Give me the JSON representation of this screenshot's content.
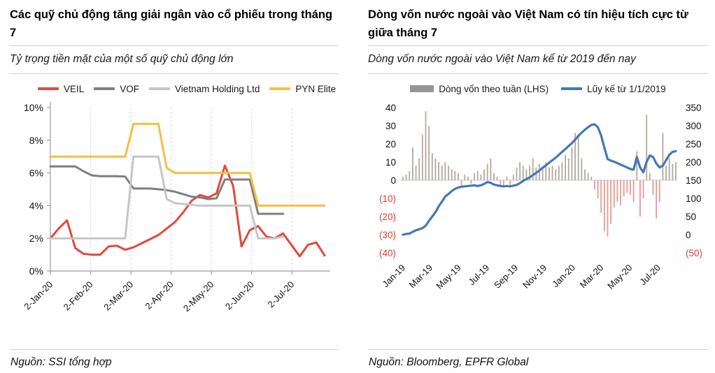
{
  "panels": [
    {
      "title": "Các quỹ chủ động tăng giải ngân vào cổ phiếu trong tháng 7",
      "subtitle": "Tỷ trọng tiền mặt của một số quỹ chủ động lớn",
      "source": "Nguồn: SSI tổng hợp"
    },
    {
      "title": "Dòng vốn nước ngoài vào Việt Nam có tín hiệu tích cực từ giữa tháng 7",
      "subtitle": "Dòng vốn nước ngoài vào Việt Nam kể từ 2019 đến nay",
      "source": "Nguồn: Bloomberg, EPFR Global"
    }
  ],
  "colors": {
    "veil_red": "#e2493b",
    "vof_gray": "#7f7f7f",
    "vhl_light_gray": "#c6c6c6",
    "pyn_yellow": "#f5bf42",
    "cumulative_blue": "#4577b6",
    "bar_positive": "#b3a89f",
    "bar_negative": "#e59a94",
    "bar_legend_swatch": "#969696",
    "negative_label_red": "#e23d30",
    "axis_line": "#9b9b9b",
    "gridline": "#d8d8d8",
    "zero_line": "#c8c8c8",
    "text": "#1a1a1a"
  },
  "chart_data": [
    {
      "type": "line",
      "title": "Tỷ trọng tiền mặt của một số quỹ chủ động lớn",
      "xlabel": "",
      "ylabel": "",
      "ylim": [
        0,
        10
      ],
      "y_ticks": [
        0,
        2,
        4,
        6,
        8,
        10
      ],
      "y_tick_labels": [
        "0%",
        "2%",
        "4%",
        "6%",
        "8%",
        "10%"
      ],
      "x_count": 34,
      "x_tick_labels": [
        "2-Jan-20",
        "2-Feb-20",
        "2-Mar-20",
        "2-Apr-20",
        "2-May-20",
        "2-Jun-20",
        "2-Jul-20"
      ],
      "x_tick_pos": [
        0,
        4.84,
        9.69,
        14.53,
        19.38,
        24.22,
        29.06
      ],
      "grid": "vertical-dashed",
      "legend_position": "top",
      "series": [
        {
          "name": "VEIL",
          "color": "#e2493b",
          "values": [
            2.0,
            2.6,
            3.1,
            1.4,
            1.05,
            1.0,
            1.0,
            1.5,
            1.55,
            1.3,
            1.45,
            1.7,
            1.95,
            2.2,
            2.6,
            3.0,
            3.6,
            4.3,
            4.65,
            4.5,
            4.75,
            6.45,
            5.2,
            1.5,
            2.5,
            2.75,
            2.1,
            2.0,
            2.3,
            1.6,
            0.9,
            1.6,
            1.75,
            0.95
          ]
        },
        {
          "name": "VOF",
          "color": "#7f7f7f",
          "values": [
            6.4,
            6.4,
            6.4,
            6.4,
            6.1,
            5.85,
            5.8,
            5.8,
            5.8,
            5.78,
            5.05,
            5.05,
            5.05,
            5.0,
            4.95,
            4.85,
            4.7,
            4.55,
            4.5,
            4.4,
            4.45,
            5.6,
            5.6,
            5.6,
            5.6,
            3.5,
            3.5,
            3.5,
            3.5,
            null,
            null,
            null,
            null,
            null
          ]
        },
        {
          "name": "Vietnam Holding Ltd",
          "color": "#c6c6c6",
          "values": [
            2.0,
            2.0,
            2.0,
            2.0,
            2.0,
            2.0,
            2.0,
            2.0,
            2.0,
            2.0,
            7.0,
            7.0,
            7.0,
            7.0,
            4.4,
            4.15,
            4.1,
            4.05,
            4.0,
            4.0,
            4.0,
            4.0,
            4.0,
            4.0,
            4.0,
            2.0,
            2.0,
            2.0,
            2.1,
            null,
            null,
            null,
            null,
            null
          ]
        },
        {
          "name": "PYN Elite",
          "color": "#f5bf42",
          "values": [
            7.0,
            7.0,
            7.0,
            7.0,
            7.0,
            7.0,
            7.0,
            7.0,
            7.0,
            7.0,
            9.0,
            9.0,
            9.0,
            9.0,
            6.3,
            6.0,
            6.0,
            6.0,
            6.0,
            6.0,
            6.0,
            6.0,
            6.0,
            6.0,
            6.0,
            4.0,
            4.0,
            4.0,
            4.0,
            4.0,
            4.0,
            4.0,
            4.0,
            4.0
          ]
        }
      ]
    },
    {
      "type": "combo",
      "title": "Dòng vốn nước ngoài vào Việt Nam kể từ 2019 đến nay",
      "x_count": 85,
      "x_tick_labels": [
        "Jan-19",
        "Mar-19",
        "May-19",
        "Jul-19",
        "Sep-19",
        "Nov-19",
        "Jan-20",
        "Mar-20",
        "May-20",
        "Jul-20"
      ],
      "x_tick_pos": [
        0,
        8.43,
        17.14,
        25.86,
        34.71,
        43.57,
        52.29,
        61.0,
        69.86,
        78.57
      ],
      "left_axis": {
        "lim": [
          -40,
          40
        ],
        "ticks": [
          40,
          30,
          20,
          10,
          0,
          -10,
          -20,
          -30,
          -40
        ],
        "tick_labels": [
          "40",
          "30",
          "20",
          "10",
          "0",
          "(10)",
          "(20)",
          "(30)",
          "(40)"
        ]
      },
      "right_axis": {
        "lim": [
          -50,
          350
        ],
        "ticks": [
          350,
          300,
          250,
          200,
          150,
          100,
          50,
          0,
          -50
        ],
        "tick_labels": [
          "350",
          "300",
          "250",
          "200",
          "150",
          "100",
          "50",
          "0",
          "(50)"
        ]
      },
      "legend_position": "top",
      "series": [
        {
          "name": "Dòng vốn theo tuần (LHS)",
          "type": "bar",
          "axis": "left",
          "color": "#b3a89f",
          "neg_color": "#e59a94",
          "legend_color": "#969696",
          "values": [
            2,
            3,
            5,
            18,
            8,
            12,
            25,
            38,
            30,
            15,
            12,
            10,
            8,
            10,
            8,
            6,
            5,
            4,
            -3,
            3,
            2,
            -2,
            4,
            5,
            3,
            6,
            9,
            12,
            4,
            2,
            -3,
            -4,
            2,
            -3,
            3,
            7,
            10,
            8,
            6,
            8,
            12,
            7,
            9,
            6,
            10,
            7,
            8,
            6,
            8,
            10,
            14,
            12,
            18,
            26,
            24,
            12,
            6,
            4,
            2,
            -5,
            -10,
            -18,
            -28,
            -31,
            -24,
            -15,
            -12,
            -14,
            -9,
            -7,
            -8,
            -12,
            16,
            -20,
            -10,
            36,
            4,
            -8,
            -21,
            -12,
            26,
            8,
            12,
            9,
            10
          ]
        },
        {
          "name": "Lũy kế từ 1/1/2019",
          "type": "line",
          "axis": "right",
          "color": "#4577b6",
          "values": [
            0,
            2,
            3,
            8,
            12,
            15,
            18,
            25,
            38,
            50,
            62,
            78,
            91,
            105,
            112,
            120,
            126,
            130,
            132,
            133,
            134,
            135,
            136,
            134,
            136,
            140,
            145,
            143,
            138,
            136,
            134,
            133,
            134,
            133,
            135,
            137,
            142,
            148,
            153,
            158,
            164,
            170,
            177,
            184,
            191,
            198,
            205,
            212,
            220,
            228,
            236,
            244,
            252,
            262,
            272,
            281,
            289,
            296,
            302,
            304,
            296,
            273,
            240,
            208,
            204,
            201,
            197,
            193,
            189,
            185,
            181,
            179,
            214,
            185,
            172,
            200,
            218,
            214,
            196,
            185,
            190,
            205,
            220,
            228,
            230
          ]
        }
      ]
    }
  ]
}
